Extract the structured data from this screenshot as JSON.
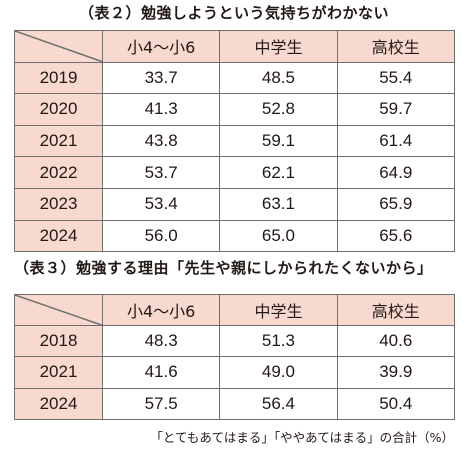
{
  "table1": {
    "title": "（表２）勉強しようという気持ちがわかない",
    "headers": [
      "小4～小6",
      "中学生",
      "高校生"
    ],
    "rows": [
      {
        "year": "2019",
        "values": [
          "33.7",
          "48.5",
          "55.4"
        ]
      },
      {
        "year": "2020",
        "values": [
          "41.3",
          "52.8",
          "59.7"
        ]
      },
      {
        "year": "2021",
        "values": [
          "43.8",
          "59.1",
          "61.4"
        ]
      },
      {
        "year": "2022",
        "values": [
          "53.7",
          "62.1",
          "64.9"
        ]
      },
      {
        "year": "2023",
        "values": [
          "53.4",
          "63.1",
          "65.9"
        ]
      },
      {
        "year": "2024",
        "values": [
          "56.0",
          "65.0",
          "65.6"
        ]
      }
    ]
  },
  "table2": {
    "title": "（表３）勉強する理由「先生や親にしかられたくないから」",
    "headers": [
      "小4～小6",
      "中学生",
      "高校生"
    ],
    "rows": [
      {
        "year": "2018",
        "values": [
          "48.3",
          "51.3",
          "40.6"
        ]
      },
      {
        "year": "2021",
        "values": [
          "41.6",
          "49.0",
          "39.9"
        ]
      },
      {
        "year": "2024",
        "values": [
          "57.5",
          "56.4",
          "50.4"
        ]
      }
    ]
  },
  "footnote": "「とてもあてはまる」「ややあてはまる」の合計（%）"
}
